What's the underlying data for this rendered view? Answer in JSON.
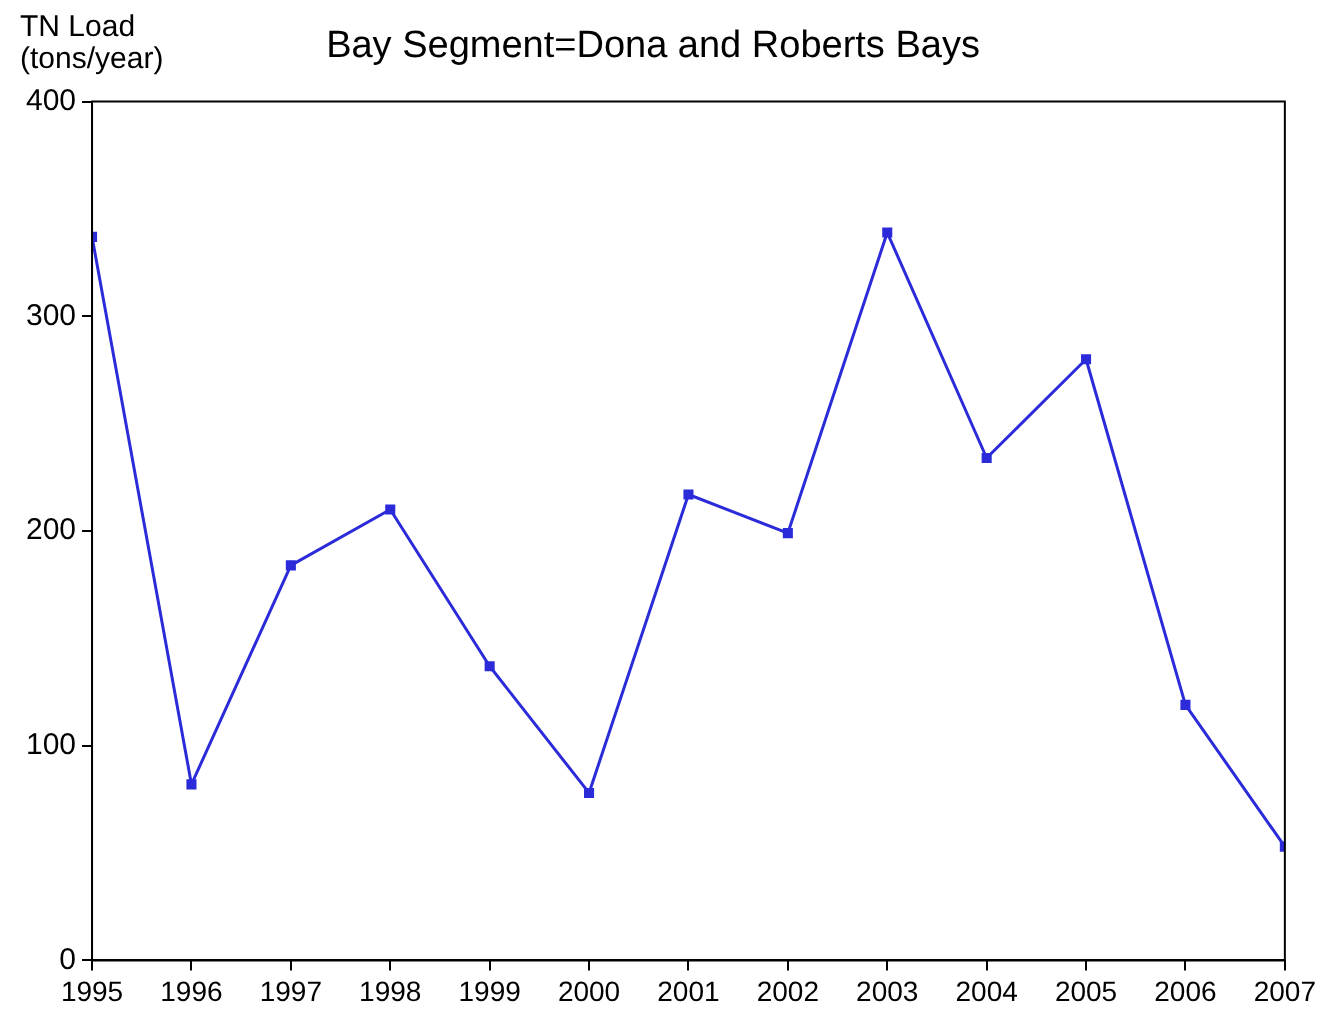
{
  "chart_data": {
    "type": "line",
    "title": "Bay Segment=Dona and Roberts Bays",
    "ylabel": "TN Load (tons/year)",
    "x": [
      1995,
      1996,
      1997,
      1998,
      1999,
      2000,
      2001,
      2002,
      2003,
      2004,
      2005,
      2006,
      2007
    ],
    "series": [
      {
        "color": "#2b2bd9",
        "values": [
          337,
          82,
          184,
          210,
          137,
          78,
          217,
          199,
          339,
          234,
          280,
          119,
          53
        ]
      }
    ],
    "xlim": [
      1995,
      2007
    ],
    "xticks": [
      1995,
      1996,
      1997,
      1998,
      1999,
      2000,
      2001,
      2002,
      2003,
      2004,
      2005,
      2006,
      2007
    ],
    "ylim": [
      0,
      400
    ],
    "yticks": [
      0,
      100,
      200,
      300,
      400
    ],
    "grid": false,
    "legend": false,
    "marker": "square",
    "line_style": "solid"
  }
}
